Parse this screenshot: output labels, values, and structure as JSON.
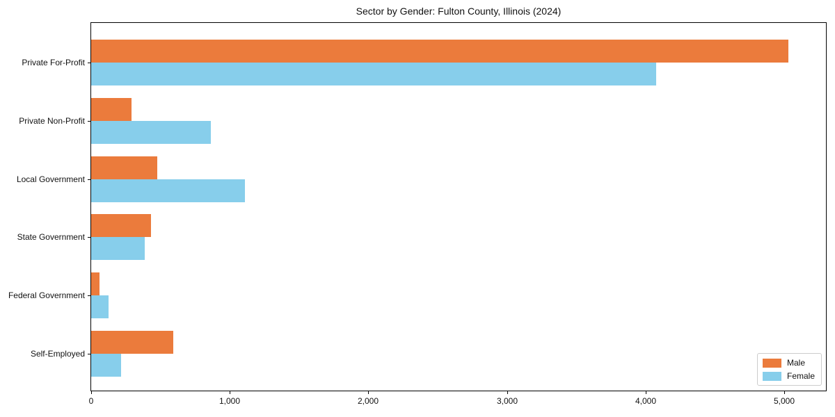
{
  "title": "Sector by Gender: Fulton County, Illinois (2024)",
  "chart_data": {
    "type": "bar",
    "orientation": "horizontal",
    "title": "Sector by Gender: Fulton County, Illinois (2024)",
    "categories": [
      "Private For-Profit",
      "Private Non-Profit",
      "Local Government",
      "State Government",
      "Federal Government",
      "Self-Employed"
    ],
    "series": [
      {
        "name": "Male",
        "color": "#EB7B3C",
        "values": [
          5030,
          290,
          475,
          430,
          60,
          590
        ]
      },
      {
        "name": "Female",
        "color": "#87CEEB",
        "values": [
          4075,
          865,
          1110,
          385,
          125,
          215
        ]
      }
    ],
    "xlabel": "",
    "ylabel": "",
    "xlim": [
      0,
      5300
    ],
    "xticks": [
      0,
      1000,
      2000,
      3000,
      4000,
      5000
    ],
    "xtick_labels": [
      "0",
      "1,000",
      "2,000",
      "3,000",
      "4,000",
      "5,000"
    ],
    "grid": false,
    "legend_position": "lower right",
    "axis_color": "#000000"
  }
}
